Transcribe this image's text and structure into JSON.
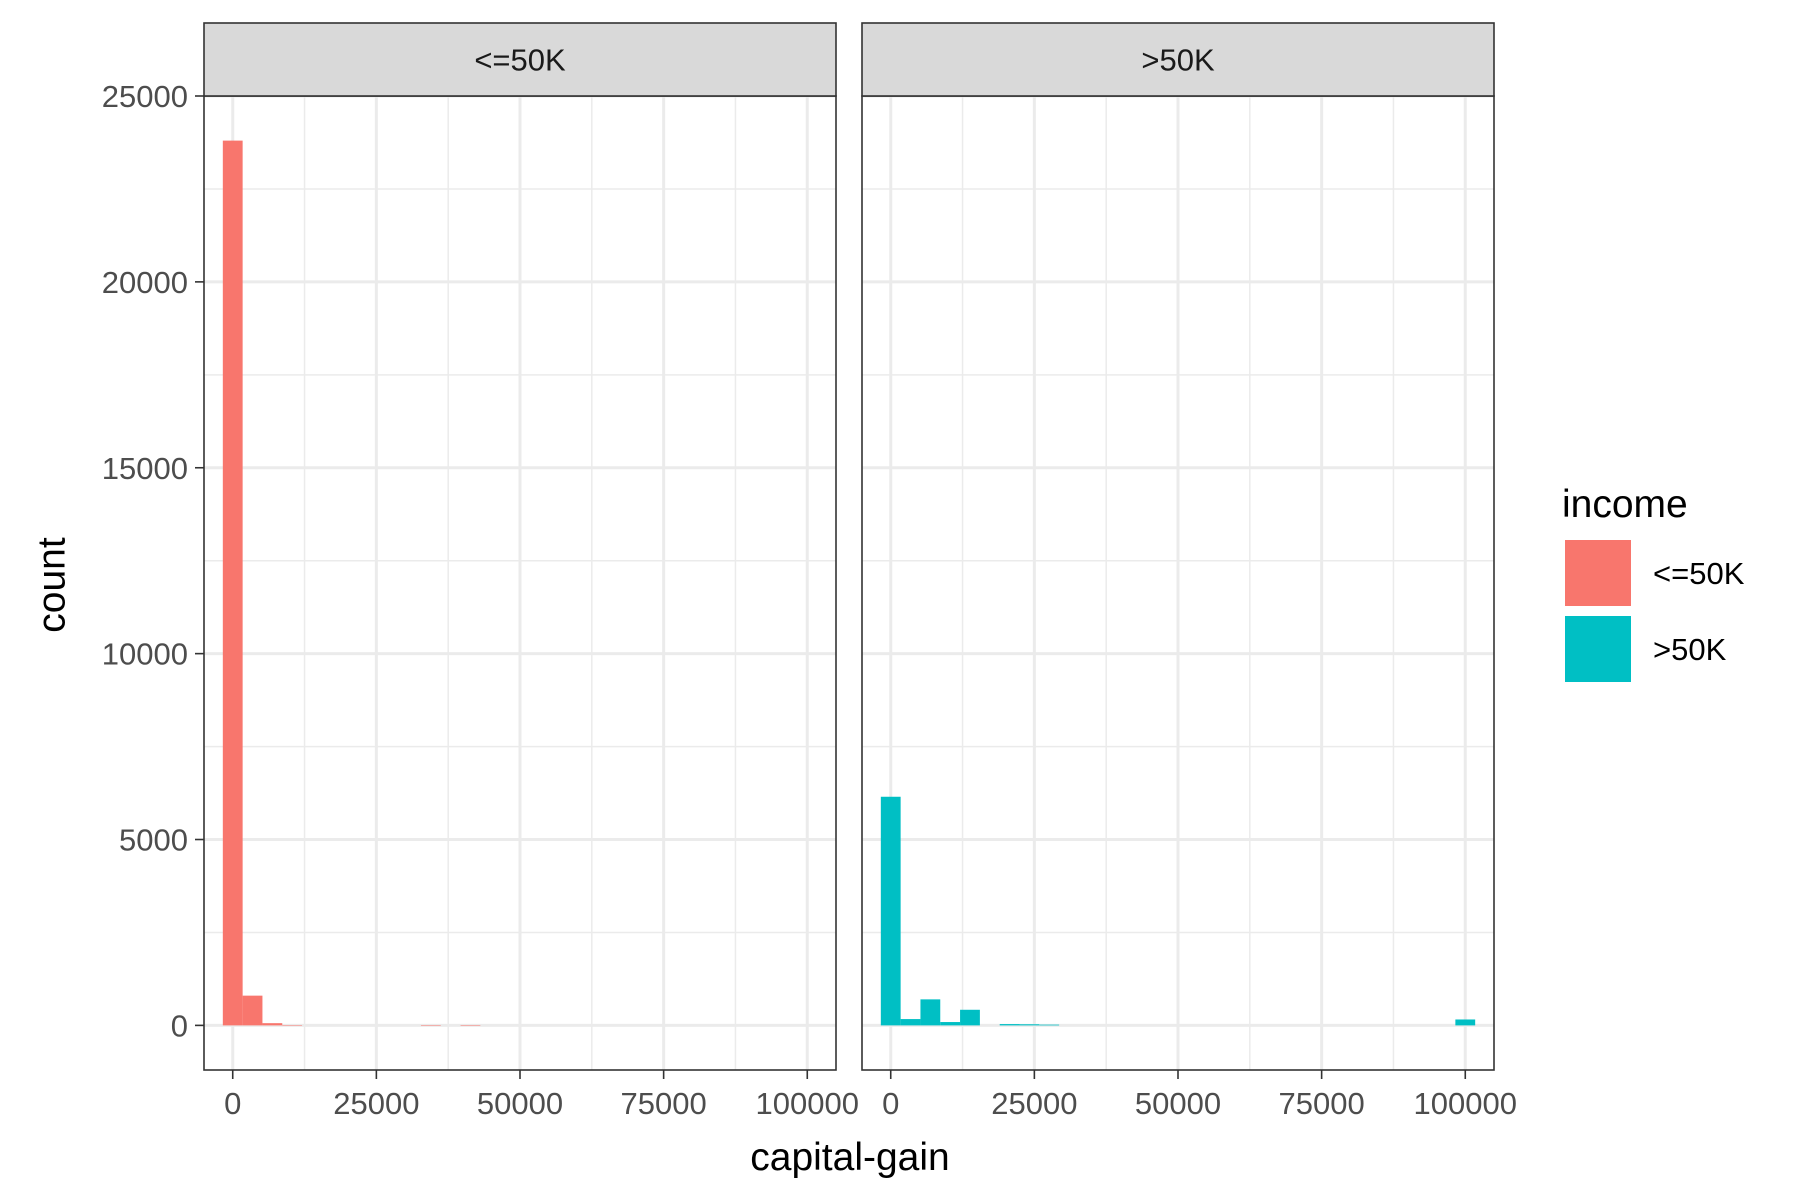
{
  "chart_data": {
    "type": "bar",
    "subtype": "faceted-histogram",
    "xlabel": "capital-gain",
    "ylabel": "count",
    "xlim": [
      -5000,
      105000
    ],
    "ylim": [
      -1200,
      25000
    ],
    "x_ticks": [
      0,
      25000,
      50000,
      75000,
      100000
    ],
    "y_ticks": [
      0,
      5000,
      10000,
      15000,
      20000,
      25000
    ],
    "bin_width": 3448,
    "grid": true,
    "facets": [
      {
        "label": "<=50K",
        "color": "#F8766D",
        "bins": [
          {
            "x": 0,
            "count": 23800
          },
          {
            "x": 3448,
            "count": 800
          },
          {
            "x": 6897,
            "count": 60
          },
          {
            "x": 10345,
            "count": 10
          },
          {
            "x": 34483,
            "count": 8
          },
          {
            "x": 41379,
            "count": 5
          }
        ]
      },
      {
        "label": ">50K",
        "color": "#00BFC4",
        "bins": [
          {
            "x": 0,
            "count": 6150
          },
          {
            "x": 3448,
            "count": 170
          },
          {
            "x": 6897,
            "count": 700
          },
          {
            "x": 10345,
            "count": 90
          },
          {
            "x": 13793,
            "count": 420
          },
          {
            "x": 20690,
            "count": 35
          },
          {
            "x": 24138,
            "count": 30
          },
          {
            "x": 27586,
            "count": 20
          },
          {
            "x": 100000,
            "count": 159
          }
        ]
      }
    ],
    "legend": {
      "title": "income",
      "position": "right",
      "entries": [
        {
          "label": "<=50K",
          "color": "#F8766D"
        },
        {
          "label": ">50K",
          "color": "#00BFC4"
        }
      ]
    }
  }
}
